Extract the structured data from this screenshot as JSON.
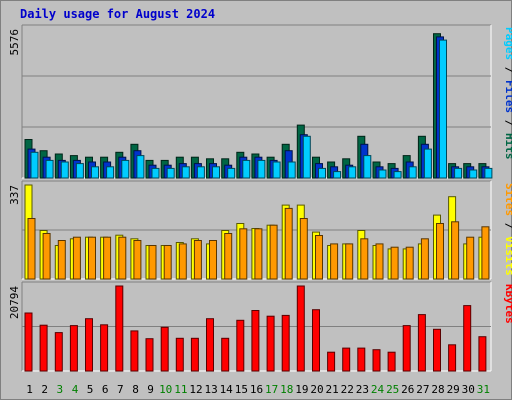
{
  "chart_data": {
    "type": "bar",
    "title": "Daily usage for August 2024",
    "categories": [
      "1",
      "2",
      "3",
      "4",
      "5",
      "6",
      "7",
      "8",
      "9",
      "10",
      "11",
      "12",
      "13",
      "14",
      "15",
      "16",
      "17",
      "18",
      "19",
      "20",
      "21",
      "22",
      "23",
      "24",
      "25",
      "26",
      "27",
      "28",
      "29",
      "30",
      "31"
    ],
    "weekend_days": [
      "3",
      "4",
      "10",
      "11",
      "17",
      "18",
      "24",
      "25",
      "31"
    ],
    "colors": {
      "hits": "#006644",
      "files": "#0033cc",
      "pages": "#00ccff",
      "visits": "#ffff00",
      "sites": "#ff9900",
      "kbytes": "#ff0000",
      "weekday_label": "#000000",
      "weekend_label": "#008000"
    },
    "panels": [
      {
        "id": "hits-files-pages",
        "max_label": "5576",
        "ylim": [
          0,
          5576
        ],
        "legend": [
          {
            "text": "Pages",
            "color": "#00ccff"
          },
          {
            "text": " / ",
            "color": "#000000"
          },
          {
            "text": "Files",
            "color": "#0033cc"
          },
          {
            "text": " / ",
            "color": "#000000"
          },
          {
            "text": "Hits",
            "color": "#006644"
          }
        ],
        "series": [
          {
            "name": "Hits",
            "color": "#006644",
            "values": [
              1440,
              1020,
              900,
              840,
              780,
              780,
              960,
              1260,
              660,
              660,
              780,
              780,
              720,
              720,
              960,
              900,
              780,
              1260,
              1980,
              780,
              600,
              720,
              1560,
              600,
              540,
              840,
              1560,
              5400,
              540,
              540,
              540
            ]
          },
          {
            "name": "Files",
            "color": "#0033cc",
            "values": [
              1080,
              780,
              660,
              660,
              600,
              600,
              780,
              1020,
              480,
              480,
              540,
              540,
              540,
              480,
              780,
              780,
              660,
              1020,
              1620,
              540,
              420,
              480,
              1260,
              420,
              360,
              600,
              1260,
              5280,
              420,
              420,
              420
            ]
          },
          {
            "name": "Pages",
            "color": "#00ccff",
            "values": [
              960,
              660,
              600,
              540,
              420,
              420,
              660,
              840,
              360,
              360,
              420,
              420,
              420,
              360,
              660,
              660,
              600,
              600,
              1560,
              360,
              240,
              420,
              840,
              300,
              240,
              420,
              1080,
              5160,
              360,
              300,
              360
            ]
          }
        ]
      },
      {
        "id": "visits-sites",
        "max_label": "337",
        "ylim": [
          0,
          337
        ],
        "legend": [
          {
            "text": "Sites",
            "color": "#ff9900"
          },
          {
            "text": " / ",
            "color": "#000000"
          },
          {
            "text": "Visits",
            "color": "#ffff00"
          }
        ],
        "series": [
          {
            "name": "Visits",
            "color": "#ffff00",
            "values": [
              337,
              174,
              120,
              144,
              150,
              150,
              157,
              144,
              120,
              120,
              131,
              144,
              126,
              174,
              199,
              181,
              193,
              265,
              265,
              168,
              120,
              126,
              174,
              120,
              108,
              108,
              126,
              229,
              295,
              126,
              150
            ]
          },
          {
            "name": "Sites",
            "color": "#ff9900",
            "values": [
              217,
              163,
              138,
              150,
              150,
              150,
              150,
              138,
              120,
              120,
              126,
              138,
              138,
              163,
              180,
              180,
              193,
              253,
              217,
              156,
              126,
              126,
              144,
              126,
              114,
              114,
              144,
              199,
              205,
              150,
              187
            ]
          }
        ]
      },
      {
        "id": "kbytes",
        "max_label": "20794",
        "ylim": [
          0,
          20794
        ],
        "legend": [
          {
            "text": "KBytes",
            "color": "#ff0000"
          }
        ],
        "series": [
          {
            "name": "KBytes",
            "color": "#ff0000",
            "values": [
              14200,
              11200,
              9400,
              11100,
              12800,
              11300,
              20794,
              9800,
              7900,
              10700,
              8000,
              8000,
              12800,
              8000,
              12400,
              14800,
              13400,
              13600,
              20794,
              15000,
              4600,
              5600,
              5600,
              5200,
              4600,
              11100,
              13800,
              10200,
              6400,
              16000,
              8400
            ]
          }
        ]
      }
    ]
  }
}
